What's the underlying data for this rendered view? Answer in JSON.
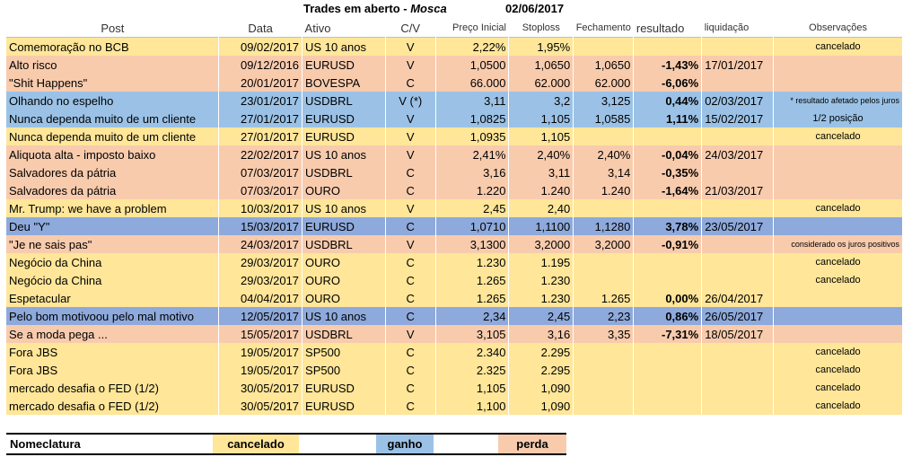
{
  "title": {
    "prefix": "Trades em aberto - ",
    "author": "Mosca",
    "date": "02/06/2017"
  },
  "headers": {
    "post": "Post",
    "data": "Data",
    "ativo": "Ativo",
    "cv": "C/V",
    "preco_inicial": "Preço Inicial",
    "stoploss": "Stoploss",
    "fechamento": "Fechamento",
    "resultado": "resultado",
    "liquidacao": "liquidação",
    "observacoes": "Observações"
  },
  "rows": [
    {
      "status": "cancelado",
      "post": "Comemoração no BCB",
      "data": "09/02/2017",
      "ativo": "US 10 anos",
      "cv": "V",
      "preco": "2,22%",
      "stop": "1,95%",
      "fech": "",
      "res": "",
      "liq": "",
      "obs": "cancelado"
    },
    {
      "status": "perda",
      "post": "Alto risco",
      "data": "09/12/2016",
      "ativo": "EURUSD",
      "cv": "V",
      "preco": "1,0500",
      "stop": "1,0650",
      "fech": "1,0650",
      "res": "-1,43%",
      "liq": "17/01/2017",
      "obs": ""
    },
    {
      "status": "perda",
      "post": "\"Shit Happens\"",
      "data": "20/01/2017",
      "ativo": "BOVESPA",
      "cv": "C",
      "preco": "66.000",
      "stop": "62.000",
      "fech": "62.000",
      "res": "-6,06%",
      "liq": "",
      "obs": ""
    },
    {
      "status": "ganho",
      "post": "Olhando no espelho",
      "data": "23/01/2017",
      "ativo": "USDBRL",
      "cv": "V (*)",
      "preco": "3,11",
      "stop": "3,2",
      "fech": "3,125",
      "res": "0,44%",
      "liq": "02/03/2017",
      "obs": "* resultado afetado pelos juros",
      "obs_small": true
    },
    {
      "status": "ganho",
      "post": "Nunca dependa muito de um cliente",
      "data": "27/01/2017",
      "ativo": "EURUSD",
      "cv": "V",
      "preco": "1,0825",
      "stop": "1,105",
      "fech": "1,0585",
      "res": "1,11%",
      "liq": "15/02/2017",
      "obs": "1/2 posição"
    },
    {
      "status": "cancelado",
      "post": "Nunca dependa muito de um cliente",
      "data": "27/01/2017",
      "ativo": "EURUSD",
      "cv": "V",
      "preco": "1,0935",
      "stop": "1,105",
      "fech": "",
      "res": "",
      "liq": "",
      "obs": "cancelado"
    },
    {
      "status": "perda",
      "post": "Aliquota alta - imposto baixo",
      "data": "22/02/2017",
      "ativo": "US 10 anos",
      "cv": "V",
      "preco": "2,41%",
      "stop": "2,40%",
      "fech": "2,40%",
      "res": "-0,04%",
      "liq": "24/03/2017",
      "obs": ""
    },
    {
      "status": "perda",
      "post": "Salvadores da pátria",
      "data": "07/03/2017",
      "ativo": "USDBRL",
      "cv": "C",
      "preco": "3,16",
      "stop": "3,11",
      "fech": "3,14",
      "res": "-0,35%",
      "liq": "",
      "obs": ""
    },
    {
      "status": "perda",
      "post": "Salvadores da pátria",
      "data": "07/03/2017",
      "ativo": "OURO",
      "cv": "C",
      "preco": "1.220",
      "stop": "1.240",
      "fech": "1.240",
      "res": "-1,64%",
      "liq": "21/03/2017",
      "obs": ""
    },
    {
      "status": "cancelado",
      "post": "Mr. Trump: we have a problem",
      "data": "10/03/2017",
      "ativo": "US 10 anos",
      "cv": "V",
      "preco": "2,45",
      "stop": "2,40",
      "fech": "",
      "res": "",
      "liq": "",
      "obs": "cancelado"
    },
    {
      "status": "ganho2",
      "post": "Deu \"Y\"",
      "data": "15/03/2017",
      "ativo": "EURUSD",
      "cv": "C",
      "preco": "1,0710",
      "stop": "1,1100",
      "fech": "1,1280",
      "res": "3,78%",
      "liq": "23/05/2017",
      "obs": ""
    },
    {
      "status": "perda",
      "post": "\"Je ne sais pas\"",
      "data": "24/03/2017",
      "ativo": "USDBRL",
      "cv": "V",
      "preco": "3,1300",
      "stop": "3,2000",
      "fech": "3,2000",
      "res": "-0,91%",
      "liq": "",
      "obs": "considerado os juros positivos",
      "obs_small": true
    },
    {
      "status": "cancelado",
      "post": "Negócio da China",
      "data": "29/03/2017",
      "ativo": "OURO",
      "cv": "C",
      "preco": "1.230",
      "stop": "1.195",
      "fech": "",
      "res": "",
      "liq": "",
      "obs": "cancelado"
    },
    {
      "status": "cancelado",
      "post": "Negócio da China",
      "data": "29/03/2017",
      "ativo": "OURO",
      "cv": "C",
      "preco": "1.265",
      "stop": "1.230",
      "fech": "",
      "res": "",
      "liq": "",
      "obs": "cancelado"
    },
    {
      "status": "cancelado",
      "post": "Espetacular",
      "data": "04/04/2017",
      "ativo": "OURO",
      "cv": "C",
      "preco": "1.265",
      "stop": "1.230",
      "fech": "1.265",
      "res": "0,00%",
      "liq": "26/04/2017",
      "obs": ""
    },
    {
      "status": "ganho2",
      "post": "Pelo bom motivoou pelo mal motivo",
      "data": "12/05/2017",
      "ativo": "US 10 anos",
      "cv": "C",
      "preco": "2,34",
      "stop": "2,45",
      "fech": "2,23",
      "res": "0,86%",
      "liq": "26/05/2017",
      "obs": ""
    },
    {
      "status": "perda",
      "post": "Se a moda pega ...",
      "data": "15/05/2017",
      "ativo": "USDBRL",
      "cv": "V",
      "preco": "3,105",
      "stop": "3,16",
      "fech": "3,35",
      "res": "-7,31%",
      "liq": "18/05/2017",
      "obs": ""
    },
    {
      "status": "cancelado",
      "post": "Fora JBS",
      "data": "19/05/2017",
      "ativo": "SP500",
      "cv": "C",
      "preco": "2.340",
      "stop": "2.295",
      "fech": "",
      "res": "",
      "liq": "",
      "obs": "cancelado"
    },
    {
      "status": "cancelado",
      "post": "Fora JBS",
      "data": "19/05/2017",
      "ativo": "SP500",
      "cv": "C",
      "preco": "2.325",
      "stop": "2.295",
      "fech": "",
      "res": "",
      "liq": "",
      "obs": "cancelado"
    },
    {
      "status": "cancelado",
      "post": "mercado desafia o FED (1/2)",
      "data": "30/05/2017",
      "ativo": "EURUSD",
      "cv": "C",
      "preco": "1,105",
      "stop": "1,090",
      "fech": "",
      "res": "",
      "liq": "",
      "obs": "cancelado"
    },
    {
      "status": "cancelado",
      "post": "mercado desafia o FED (1/2)",
      "data": "30/05/2017",
      "ativo": "EURUSD",
      "cv": "C",
      "preco": "1,100",
      "stop": "1,090",
      "fech": "",
      "res": "",
      "liq": "",
      "obs": "cancelado"
    }
  ],
  "legend": {
    "label": "Nomeclatura",
    "cancelado": "cancelado",
    "ganho": "ganho",
    "perda": "perda"
  },
  "colors": {
    "cancelado": "#ffe699",
    "perda": "#f8cbad",
    "ganho": "#9bc2e6",
    "ganho_strong": "#8ea9db"
  }
}
